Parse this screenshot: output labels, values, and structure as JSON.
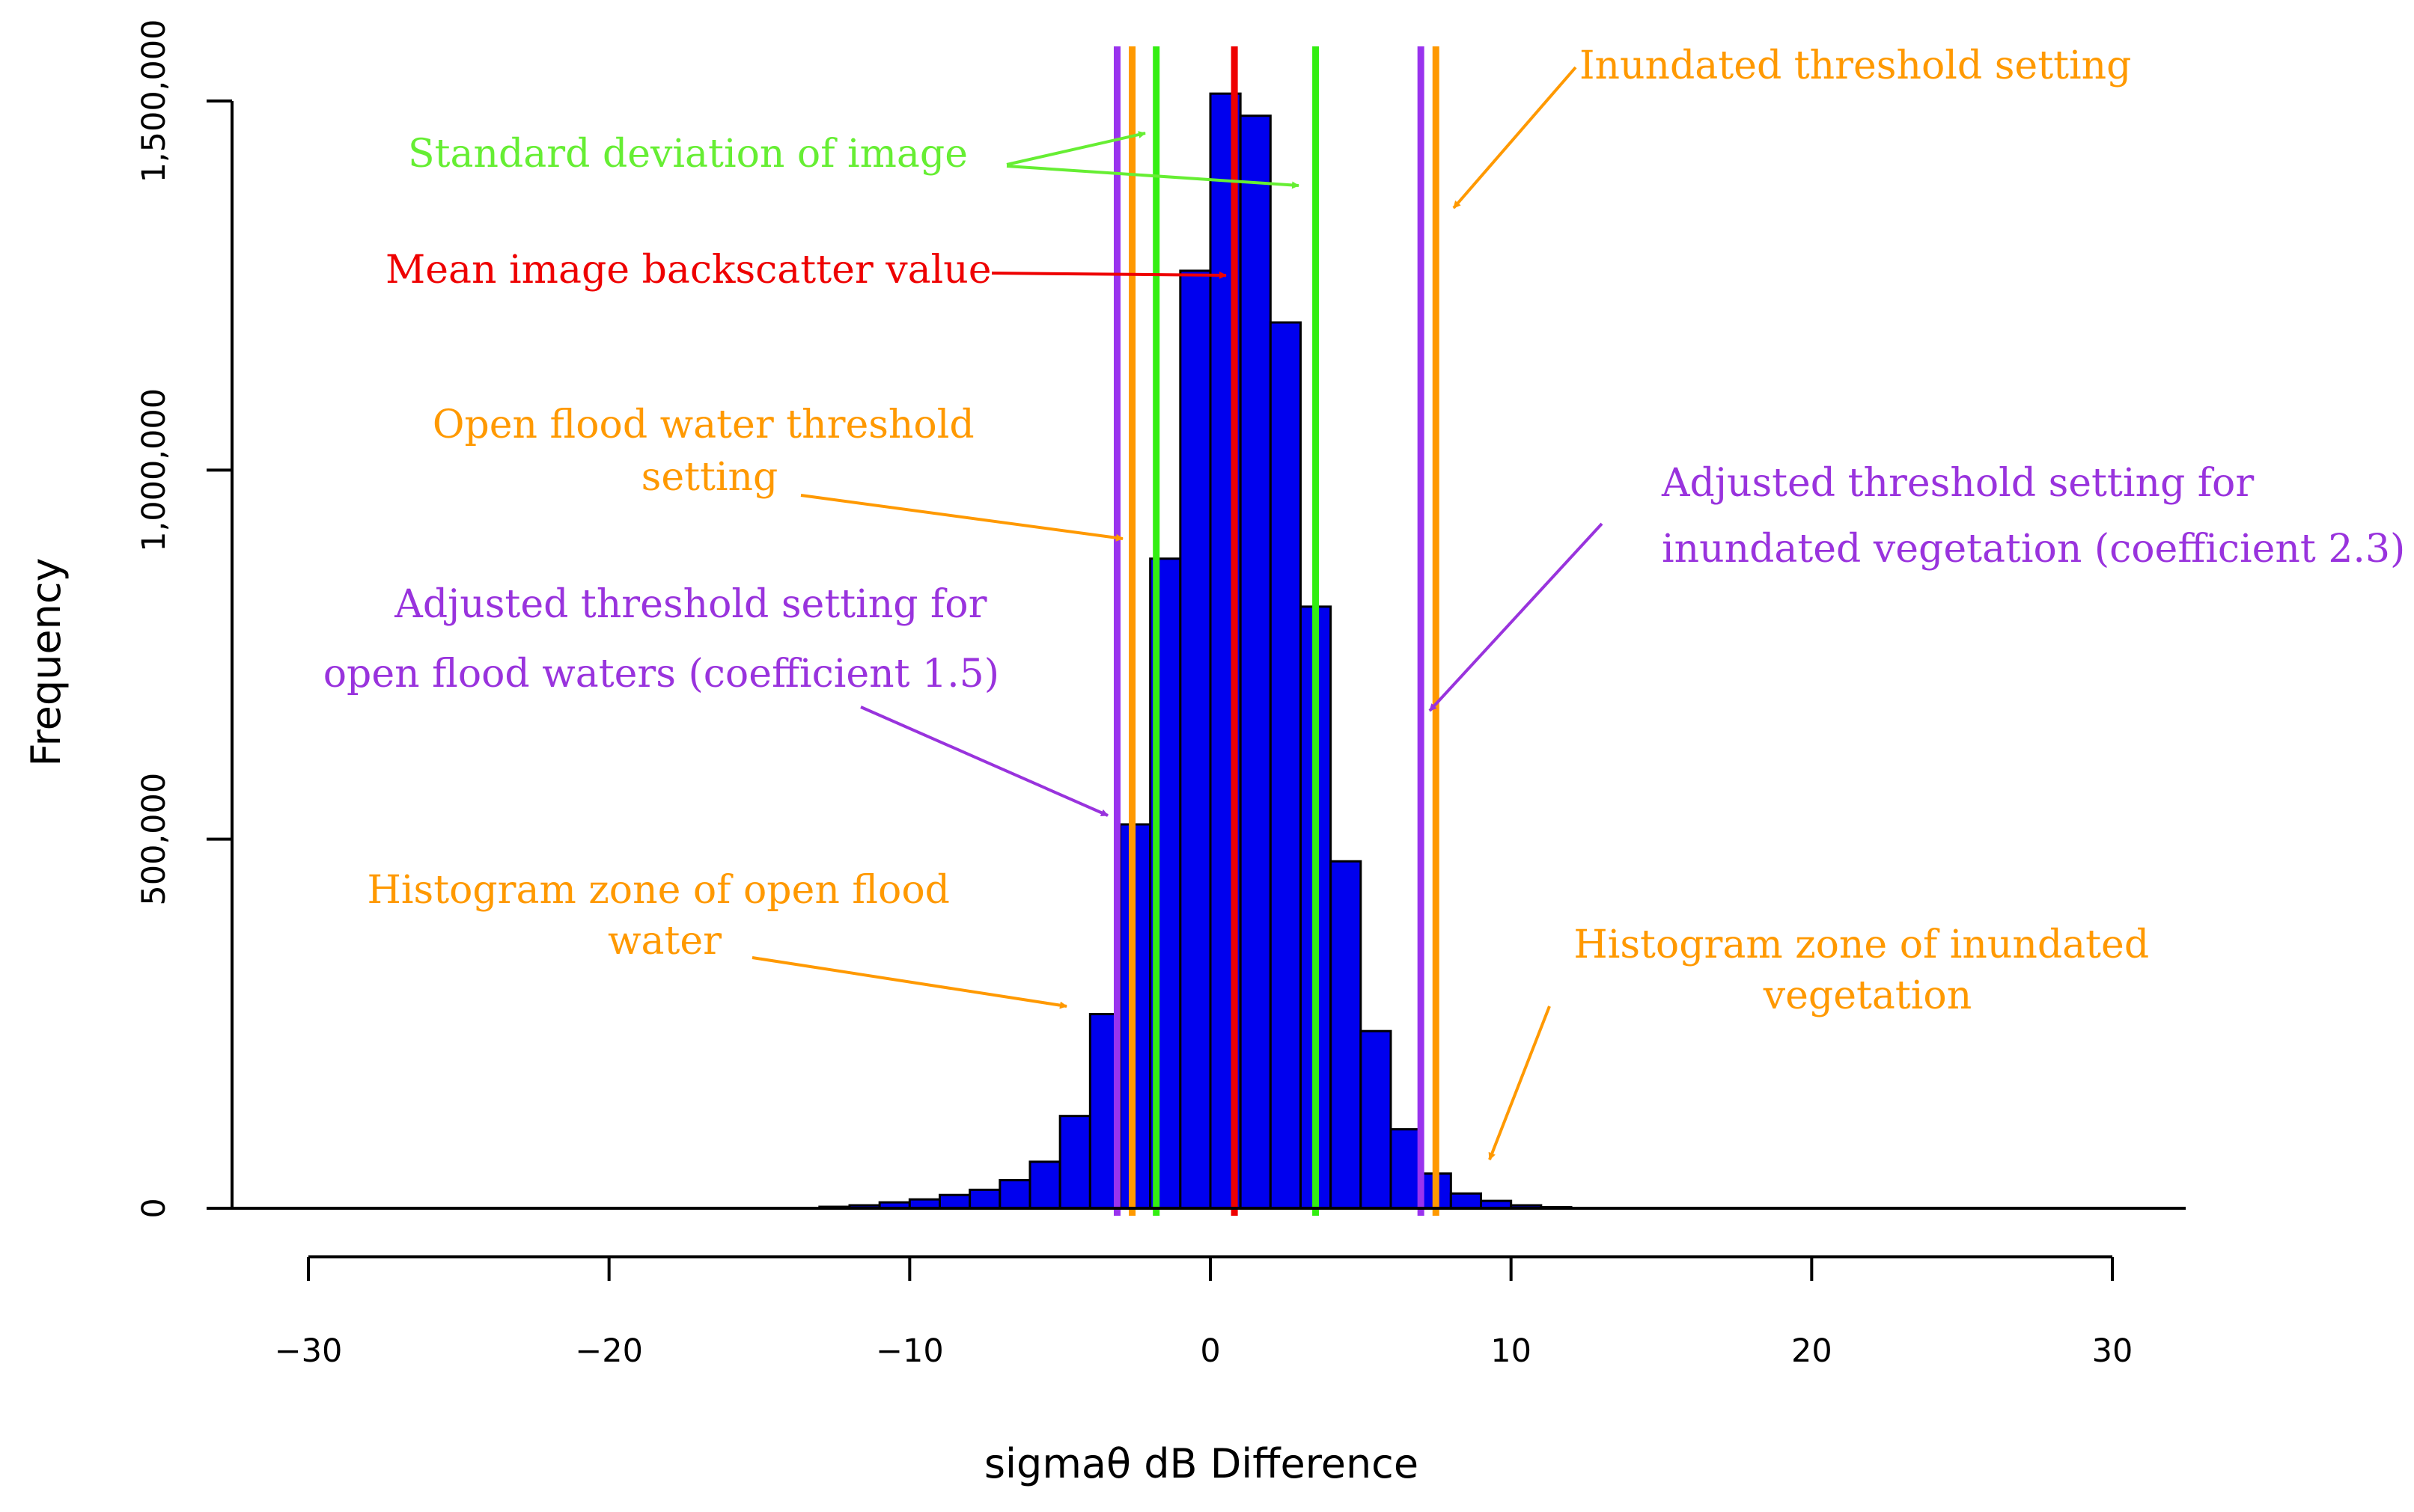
{
  "chart_data": {
    "type": "bar",
    "title": "",
    "xlabel": "sigmaθ dB Difference",
    "ylabel": "Frequency",
    "xlim": [
      -30,
      30
    ],
    "ylim": [
      0,
      1500000
    ],
    "grid": false,
    "bin_width": 1,
    "x_ticks": [
      -30,
      -20,
      -10,
      0,
      10,
      20,
      30
    ],
    "y_ticks": [
      0,
      500000,
      1000000,
      1500000
    ],
    "x_tick_labels": [
      "−30",
      "−20",
      "−10",
      "0",
      "10",
      "20",
      "30"
    ],
    "y_tick_labels": [
      "0",
      "500,000",
      "1,000,000",
      "1,500,000"
    ],
    "bar_color": "#0000ee",
    "bins": [
      {
        "x0": -13,
        "value": 2000
      },
      {
        "x0": -12,
        "value": 4000
      },
      {
        "x0": -11,
        "value": 8000
      },
      {
        "x0": -10,
        "value": 12000
      },
      {
        "x0": -9,
        "value": 18000
      },
      {
        "x0": -8,
        "value": 25000
      },
      {
        "x0": -7,
        "value": 38000
      },
      {
        "x0": -6,
        "value": 63000
      },
      {
        "x0": -5,
        "value": 125000
      },
      {
        "x0": -4,
        "value": 263000
      },
      {
        "x0": -3,
        "value": 520000
      },
      {
        "x0": -2,
        "value": 880000
      },
      {
        "x0": -1,
        "value": 1270000
      },
      {
        "x0": 0,
        "value": 1510000
      },
      {
        "x0": 1,
        "value": 1480000
      },
      {
        "x0": 2,
        "value": 1200000
      },
      {
        "x0": 3,
        "value": 815000
      },
      {
        "x0": 4,
        "value": 470000
      },
      {
        "x0": 5,
        "value": 240000
      },
      {
        "x0": 6,
        "value": 107000
      },
      {
        "x0": 7,
        "value": 47000
      },
      {
        "x0": 8,
        "value": 20000
      },
      {
        "x0": 9,
        "value": 10000
      },
      {
        "x0": 10,
        "value": 4000
      },
      {
        "x0": 11,
        "value": 1500
      }
    ],
    "vertical_lines": [
      {
        "x": -3.1,
        "color": "#9933ee"
      },
      {
        "x": -2.6,
        "color": "#ff9900"
      },
      {
        "x": -1.8,
        "color": "#33ee11"
      },
      {
        "x": 0.8,
        "color": "#ee0000"
      },
      {
        "x": 3.5,
        "color": "#33ee11"
      },
      {
        "x": 7.0,
        "color": "#9933ee"
      },
      {
        "x": 7.5,
        "color": "#ff9900"
      }
    ],
    "annotations": [
      {
        "text": [
          "Inundated threshold setting"
        ],
        "color": "#ff9900"
      },
      {
        "text": [
          "Standard deviation of image"
        ],
        "color": "#66ee33"
      },
      {
        "text": [
          "Mean image backscatter value"
        ],
        "color": "#ee0000"
      },
      {
        "text": [
          "Open flood water threshold",
          "setting"
        ],
        "color": "#ff9900"
      },
      {
        "text": [
          "Adjusted threshold setting for",
          "inundated vegetation (coefficient 2.3)"
        ],
        "color": "#9933dd"
      },
      {
        "text": [
          "Adjusted threshold setting for",
          "open flood waters (coefficient 1.5)"
        ],
        "color": "#9933dd"
      },
      {
        "text": [
          "Histogram zone of open flood",
          "water"
        ],
        "color": "#ff9900"
      },
      {
        "text": [
          "Histogram zone of inundated",
          "vegetation"
        ],
        "color": "#ff9900"
      }
    ]
  }
}
